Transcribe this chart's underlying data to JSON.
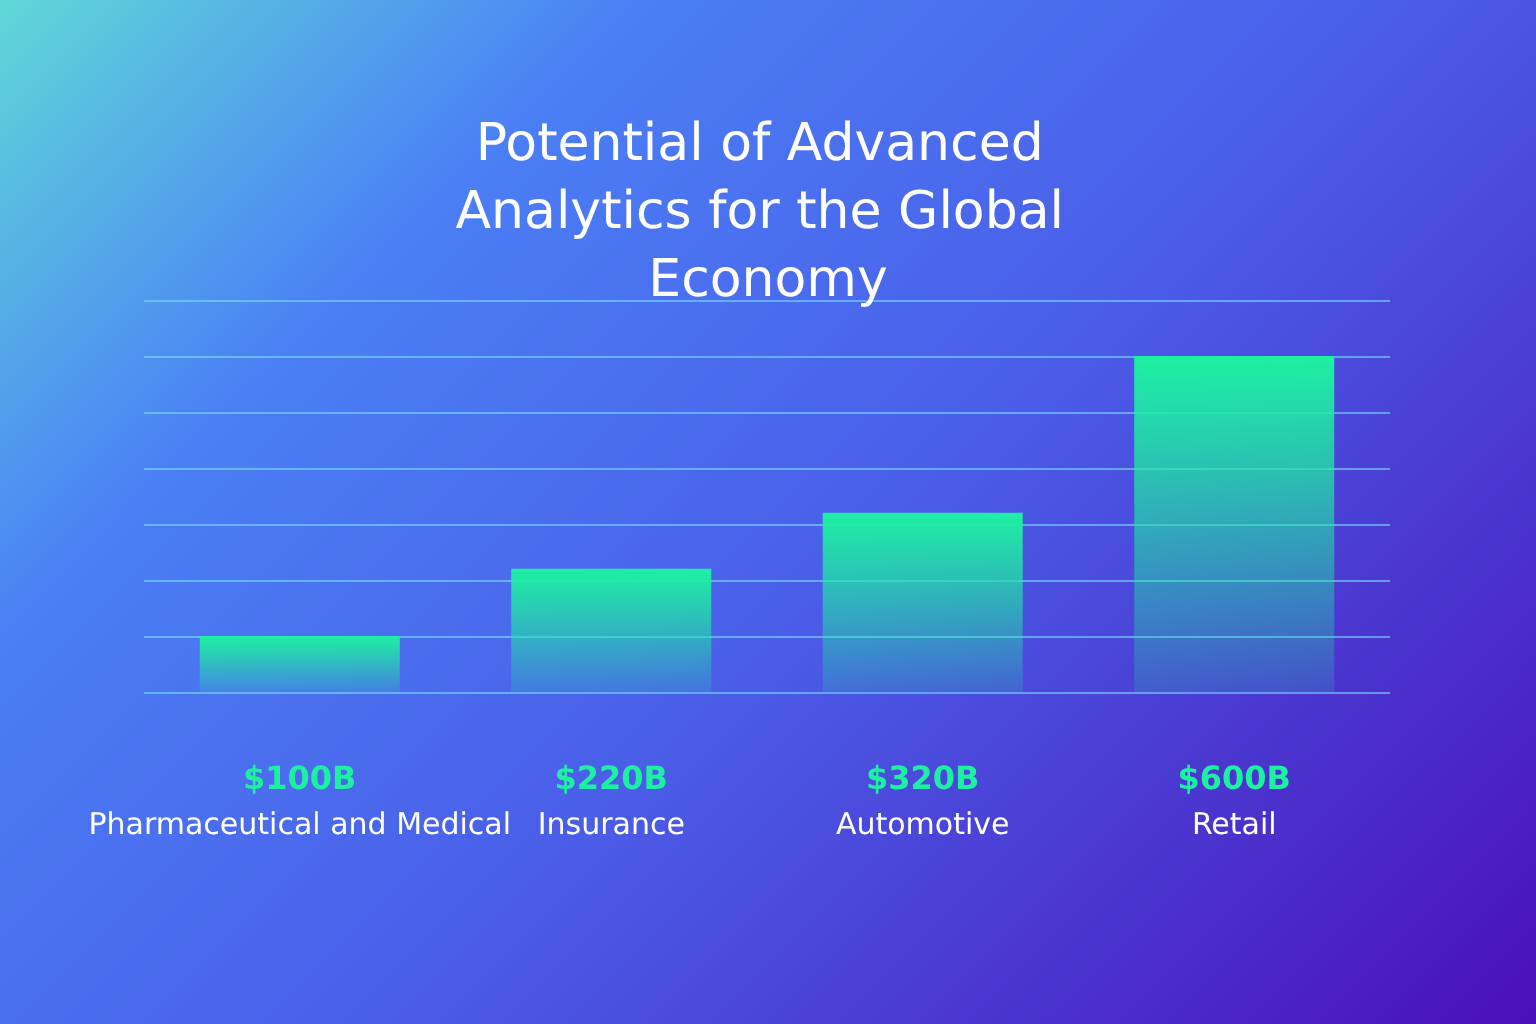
{
  "chart_data": {
    "type": "bar",
    "title": "Potential of Advanced Analytics for the Global Economy",
    "categories": [
      "Pharmaceutical and Medical",
      "Insurance",
      "Automotive",
      "Retail"
    ],
    "values": [
      100,
      220,
      320,
      600
    ],
    "value_labels": [
      "$100B",
      "$220B",
      "$320B",
      "$600B"
    ],
    "color": "#1ef0a2",
    "ylim": [
      0,
      700
    ],
    "yticks": [
      {
        "value": 0,
        "label": null
      },
      {
        "value": 100,
        "label": null
      },
      {
        "value": 200,
        "label": null
      },
      {
        "value": 300,
        "label": null
      },
      {
        "value": 400,
        "label": null
      },
      {
        "value": 500,
        "label": null
      },
      {
        "value": 600,
        "label": null
      },
      {
        "value": 700,
        "label": null
      }
    ],
    "grid": "y",
    "tick_labels": "x"
  }
}
